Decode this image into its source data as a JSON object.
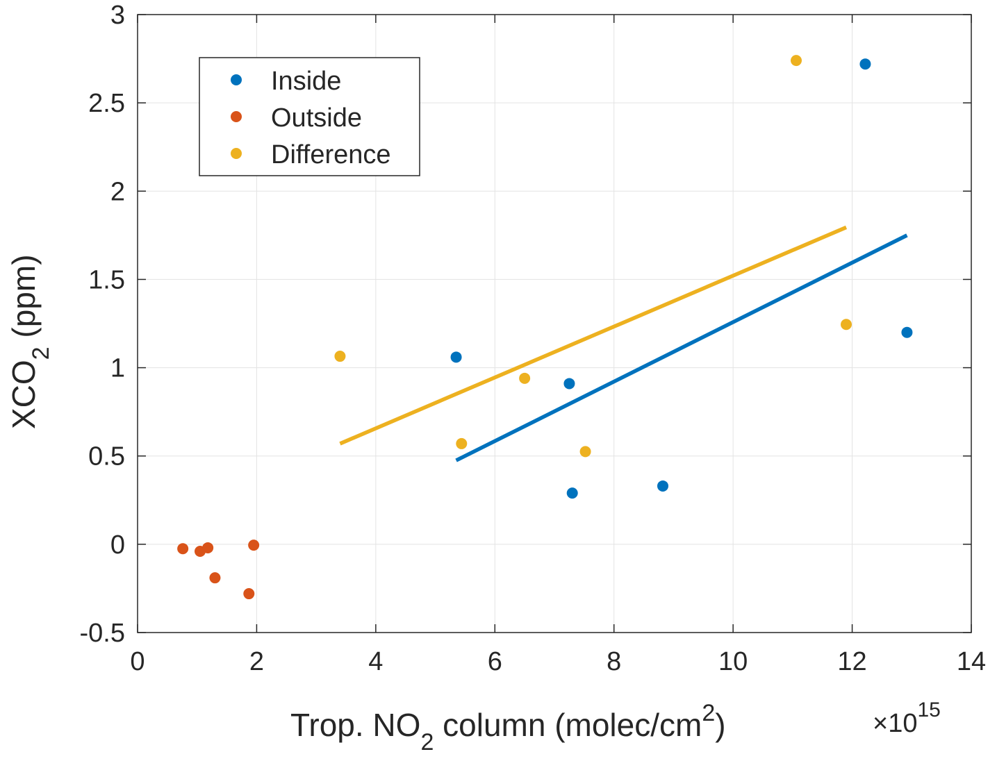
{
  "chart_data": {
    "type": "scatter",
    "title": "",
    "xlabel": {
      "main": "Trop. NO",
      "sub": "2",
      "rest": " column (molec/cm",
      "sup": "2",
      "close": ")"
    },
    "ylabel": {
      "main": "XCO",
      "sub": "2",
      "rest": " (ppm)"
    },
    "x_exponent": {
      "prefix": "×10",
      "power": "15"
    },
    "xlim": [
      0,
      14
    ],
    "ylim": [
      -0.5,
      3
    ],
    "xticks": [
      0,
      2,
      4,
      6,
      8,
      10,
      12,
      14
    ],
    "xtick_labels": [
      "0",
      "2",
      "4",
      "6",
      "8",
      "10",
      "12",
      "14"
    ],
    "yticks": [
      -0.5,
      0,
      0.5,
      1,
      1.5,
      2,
      2.5,
      3
    ],
    "ytick_labels": [
      "-0.5",
      "0",
      "0.5",
      "1",
      "1.5",
      "2",
      "2.5",
      "3"
    ],
    "grid": true,
    "legend_position": "top-left",
    "series": [
      {
        "name": "Inside",
        "color": "#0072BD",
        "points": [
          [
            5.35,
            1.06
          ],
          [
            7.25,
            0.91
          ],
          [
            7.3,
            0.29
          ],
          [
            8.82,
            0.33
          ],
          [
            12.22,
            2.72
          ],
          [
            12.92,
            1.2
          ]
        ]
      },
      {
        "name": "Outside",
        "color": "#D95319",
        "points": [
          [
            0.76,
            -0.025
          ],
          [
            1.05,
            -0.04
          ],
          [
            1.18,
            -0.02
          ],
          [
            1.3,
            -0.19
          ],
          [
            1.87,
            -0.28
          ],
          [
            1.95,
            -0.005
          ]
        ]
      },
      {
        "name": "Difference",
        "color": "#EDB120",
        "points": [
          [
            3.4,
            1.065
          ],
          [
            5.44,
            0.57
          ],
          [
            6.5,
            0.94
          ],
          [
            7.52,
            0.525
          ],
          [
            11.06,
            2.74
          ],
          [
            11.9,
            1.245
          ]
        ]
      }
    ],
    "fit_lines": [
      {
        "series": "Difference",
        "color": "#EDB120",
        "points": [
          [
            3.4,
            0.57
          ],
          [
            11.9,
            1.795
          ]
        ]
      },
      {
        "series": "Inside",
        "color": "#0072BD",
        "points": [
          [
            5.35,
            0.475
          ],
          [
            12.92,
            1.75
          ]
        ]
      }
    ]
  }
}
